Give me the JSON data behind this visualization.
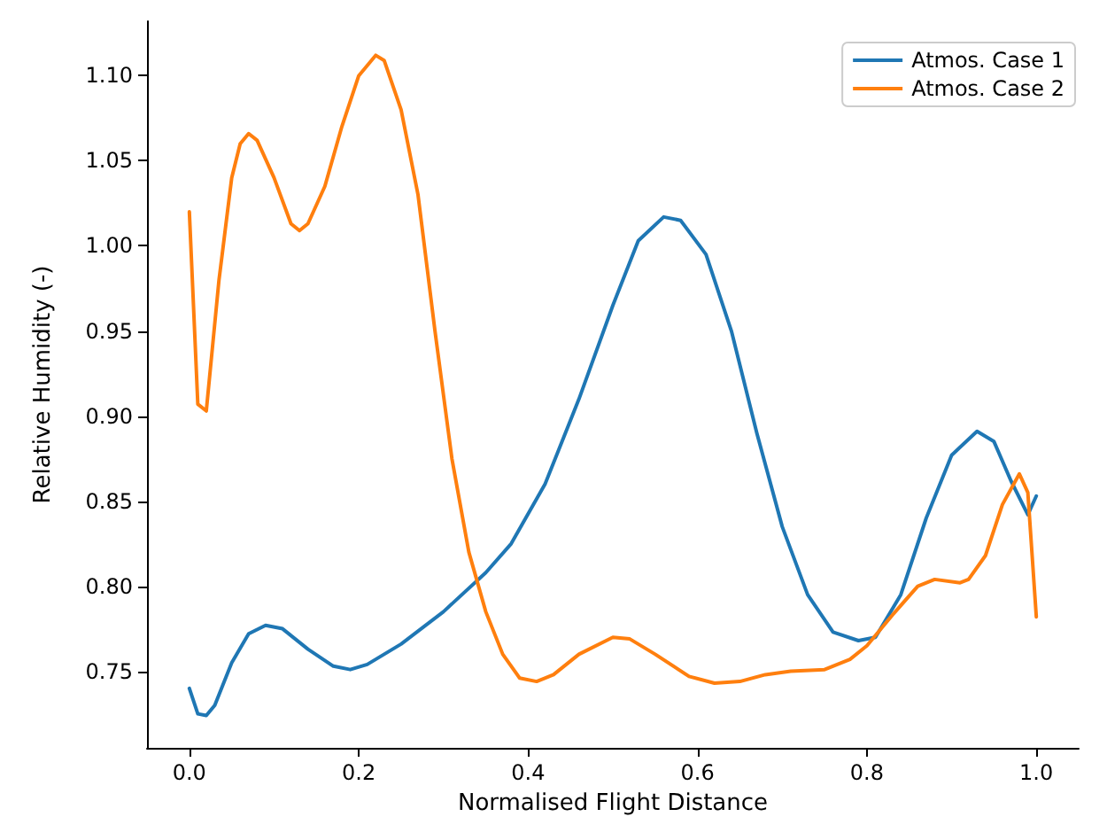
{
  "chart_data": {
    "type": "line",
    "xlabel": "Normalised Flight Distance",
    "ylabel": "Relative Humidity (-)",
    "xlim": [
      -0.05,
      1.05
    ],
    "ylim": [
      0.705,
      1.132
    ],
    "xticks": [
      {
        "value": 0,
        "label": "0.0"
      },
      {
        "value": 0.2,
        "label": "0.2"
      },
      {
        "value": 0.4,
        "label": "0.4"
      },
      {
        "value": 0.6,
        "label": "0.6"
      },
      {
        "value": 0.8,
        "label": "0.8"
      },
      {
        "value": 1,
        "label": "1.0"
      }
    ],
    "yticks": [
      {
        "value": 0.75,
        "label": "0.75"
      },
      {
        "value": 0.8,
        "label": "0.80"
      },
      {
        "value": 0.85,
        "label": "0.85"
      },
      {
        "value": 0.9,
        "label": "0.90"
      },
      {
        "value": 0.95,
        "label": "0.95"
      },
      {
        "value": 1,
        "label": "1.00"
      },
      {
        "value": 1.05,
        "label": "1.05"
      },
      {
        "value": 1.1,
        "label": "1.10"
      }
    ],
    "grid": false,
    "legend": "top right",
    "series": [
      {
        "name": "Atmos. Case 1",
        "color": "#1f77b4",
        "x": [
          0,
          0.01,
          0.02,
          0.03,
          0.05,
          0.07,
          0.09,
          0.11,
          0.14,
          0.17,
          0.19,
          0.21,
          0.25,
          0.3,
          0.35,
          0.38,
          0.42,
          0.46,
          0.5,
          0.53,
          0.56,
          0.58,
          0.61,
          0.64,
          0.67,
          0.7,
          0.73,
          0.76,
          0.79,
          0.81,
          0.84,
          0.87,
          0.9,
          0.93,
          0.95,
          0.97,
          0.99,
          1
        ],
        "values": [
          0.74,
          0.725,
          0.724,
          0.73,
          0.755,
          0.772,
          0.777,
          0.775,
          0.763,
          0.753,
          0.751,
          0.754,
          0.766,
          0.785,
          0.808,
          0.825,
          0.86,
          0.91,
          0.965,
          1.003,
          1.017,
          1.015,
          0.995,
          0.95,
          0.89,
          0.835,
          0.795,
          0.773,
          0.768,
          0.77,
          0.795,
          0.84,
          0.877,
          0.891,
          0.885,
          0.862,
          0.842,
          0.853
        ]
      },
      {
        "name": "Atmos. Case 2",
        "color": "#ff7f0e",
        "x": [
          0,
          0.01,
          0.02,
          0.035,
          0.05,
          0.06,
          0.07,
          0.08,
          0.1,
          0.12,
          0.13,
          0.14,
          0.16,
          0.18,
          0.2,
          0.22,
          0.23,
          0.25,
          0.27,
          0.29,
          0.31,
          0.33,
          0.35,
          0.37,
          0.39,
          0.41,
          0.43,
          0.46,
          0.5,
          0.52,
          0.55,
          0.59,
          0.62,
          0.65,
          0.68,
          0.71,
          0.75,
          0.78,
          0.8,
          0.83,
          0.86,
          0.88,
          0.91,
          0.92,
          0.94,
          0.96,
          0.98,
          0.99,
          1
        ],
        "values": [
          1.02,
          0.907,
          0.903,
          0.98,
          1.04,
          1.06,
          1.066,
          1.062,
          1.04,
          1.013,
          1.009,
          1.013,
          1.035,
          1.07,
          1.1,
          1.112,
          1.109,
          1.08,
          1.03,
          0.95,
          0.875,
          0.82,
          0.785,
          0.76,
          0.746,
          0.744,
          0.748,
          0.76,
          0.77,
          0.769,
          0.76,
          0.747,
          0.743,
          0.744,
          0.748,
          0.75,
          0.751,
          0.757,
          0.765,
          0.783,
          0.8,
          0.804,
          0.802,
          0.804,
          0.818,
          0.848,
          0.866,
          0.855,
          0.782
        ]
      }
    ]
  }
}
